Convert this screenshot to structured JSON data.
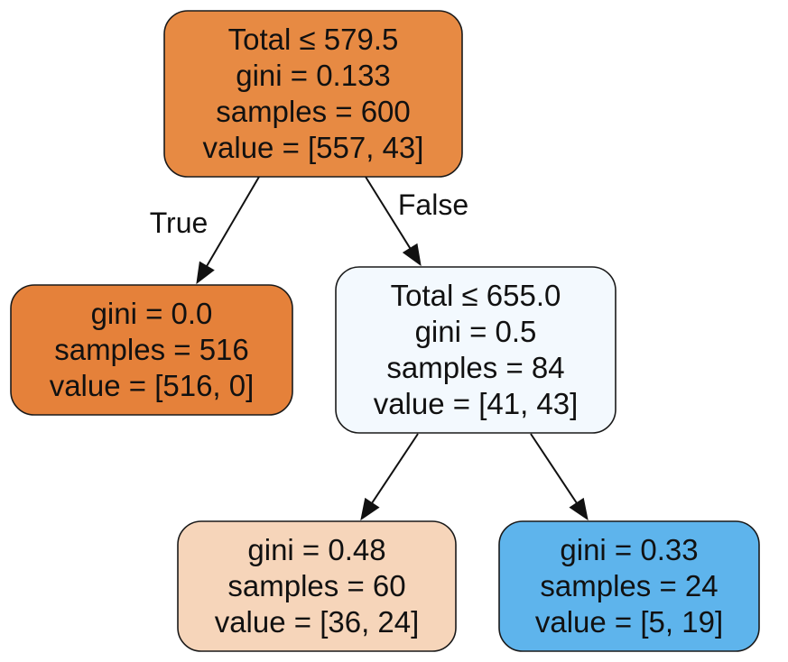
{
  "tree": {
    "nodes": [
      {
        "id": "root",
        "lines": [
          "Total ≤ 579.5",
          "gini = 0.133",
          "samples = 600",
          "value = [557, 43]"
        ],
        "fill": "#e78a43"
      },
      {
        "id": "left-leaf",
        "lines": [
          "gini = 0.0",
          "samples = 516",
          "value = [516, 0]"
        ],
        "fill": "#e5813a"
      },
      {
        "id": "right-split",
        "lines": [
          "Total ≤ 655.0",
          "gini = 0.5",
          "samples = 84",
          "value = [41, 43]"
        ],
        "fill": "#f3f9fe"
      },
      {
        "id": "bottom-left-leaf",
        "lines": [
          "gini = 0.48",
          "samples = 60",
          "value = [36, 24]"
        ],
        "fill": "#f6d5ba"
      },
      {
        "id": "bottom-right-leaf",
        "lines": [
          "gini = 0.33",
          "samples = 24",
          "value = [5, 19]"
        ],
        "fill": "#5eb4ec"
      }
    ],
    "edges": [
      {
        "from": "root",
        "to": "left-leaf",
        "label": "True"
      },
      {
        "from": "root",
        "to": "right-split",
        "label": "False"
      },
      {
        "from": "right-split",
        "to": "bottom-left-leaf",
        "label": ""
      },
      {
        "from": "right-split",
        "to": "bottom-right-leaf",
        "label": ""
      }
    ]
  }
}
